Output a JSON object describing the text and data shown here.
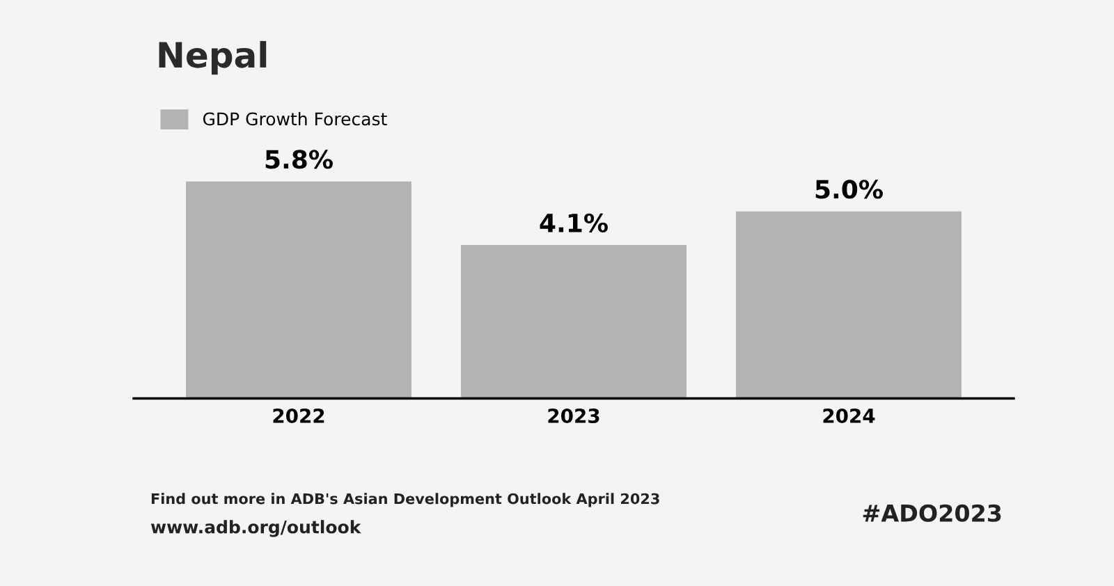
{
  "chart_data": {
    "type": "bar",
    "title": "Nepal",
    "categories": [
      "2022",
      "2023",
      "2024"
    ],
    "series": [
      {
        "name": "GDP Growth Forecast",
        "color": "#b3b3b3",
        "values": [
          5.8,
          4.1,
          5.0
        ],
        "value_labels": [
          "5.8%",
          "4.1%",
          "5.0%"
        ]
      }
    ],
    "legend": "top left",
    "grid": false,
    "annotations": [
      "Find out more in ADB's Asian Development Outlook April 2023",
      "www.adb.org/outlook",
      "#ADO2023"
    ]
  }
}
